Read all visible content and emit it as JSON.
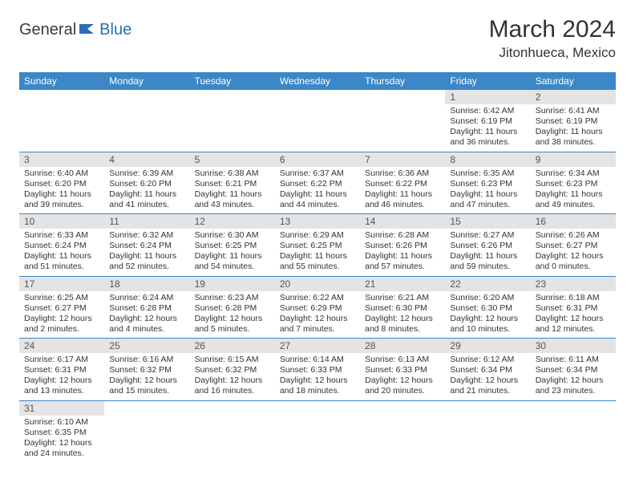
{
  "logo": {
    "text1": "General",
    "text2": "Blue"
  },
  "title": "March 2024",
  "location": "Jitonhueca, Mexico",
  "colors": {
    "header_bg": "#3b87c8",
    "header_fg": "#ffffff",
    "daynum_bg": "#e4e4e4",
    "row_border": "#3b87c8",
    "logo_blue": "#2a6fb5"
  },
  "weekdays": [
    "Sunday",
    "Monday",
    "Tuesday",
    "Wednesday",
    "Thursday",
    "Friday",
    "Saturday"
  ],
  "weeks": [
    [
      null,
      null,
      null,
      null,
      null,
      {
        "day": "1",
        "sunrise": "Sunrise: 6:42 AM",
        "sunset": "Sunset: 6:19 PM",
        "daylight": "Daylight: 11 hours and 36 minutes."
      },
      {
        "day": "2",
        "sunrise": "Sunrise: 6:41 AM",
        "sunset": "Sunset: 6:19 PM",
        "daylight": "Daylight: 11 hours and 38 minutes."
      }
    ],
    [
      {
        "day": "3",
        "sunrise": "Sunrise: 6:40 AM",
        "sunset": "Sunset: 6:20 PM",
        "daylight": "Daylight: 11 hours and 39 minutes."
      },
      {
        "day": "4",
        "sunrise": "Sunrise: 6:39 AM",
        "sunset": "Sunset: 6:20 PM",
        "daylight": "Daylight: 11 hours and 41 minutes."
      },
      {
        "day": "5",
        "sunrise": "Sunrise: 6:38 AM",
        "sunset": "Sunset: 6:21 PM",
        "daylight": "Daylight: 11 hours and 43 minutes."
      },
      {
        "day": "6",
        "sunrise": "Sunrise: 6:37 AM",
        "sunset": "Sunset: 6:22 PM",
        "daylight": "Daylight: 11 hours and 44 minutes."
      },
      {
        "day": "7",
        "sunrise": "Sunrise: 6:36 AM",
        "sunset": "Sunset: 6:22 PM",
        "daylight": "Daylight: 11 hours and 46 minutes."
      },
      {
        "day": "8",
        "sunrise": "Sunrise: 6:35 AM",
        "sunset": "Sunset: 6:23 PM",
        "daylight": "Daylight: 11 hours and 47 minutes."
      },
      {
        "day": "9",
        "sunrise": "Sunrise: 6:34 AM",
        "sunset": "Sunset: 6:23 PM",
        "daylight": "Daylight: 11 hours and 49 minutes."
      }
    ],
    [
      {
        "day": "10",
        "sunrise": "Sunrise: 6:33 AM",
        "sunset": "Sunset: 6:24 PM",
        "daylight": "Daylight: 11 hours and 51 minutes."
      },
      {
        "day": "11",
        "sunrise": "Sunrise: 6:32 AM",
        "sunset": "Sunset: 6:24 PM",
        "daylight": "Daylight: 11 hours and 52 minutes."
      },
      {
        "day": "12",
        "sunrise": "Sunrise: 6:30 AM",
        "sunset": "Sunset: 6:25 PM",
        "daylight": "Daylight: 11 hours and 54 minutes."
      },
      {
        "day": "13",
        "sunrise": "Sunrise: 6:29 AM",
        "sunset": "Sunset: 6:25 PM",
        "daylight": "Daylight: 11 hours and 55 minutes."
      },
      {
        "day": "14",
        "sunrise": "Sunrise: 6:28 AM",
        "sunset": "Sunset: 6:26 PM",
        "daylight": "Daylight: 11 hours and 57 minutes."
      },
      {
        "day": "15",
        "sunrise": "Sunrise: 6:27 AM",
        "sunset": "Sunset: 6:26 PM",
        "daylight": "Daylight: 11 hours and 59 minutes."
      },
      {
        "day": "16",
        "sunrise": "Sunrise: 6:26 AM",
        "sunset": "Sunset: 6:27 PM",
        "daylight": "Daylight: 12 hours and 0 minutes."
      }
    ],
    [
      {
        "day": "17",
        "sunrise": "Sunrise: 6:25 AM",
        "sunset": "Sunset: 6:27 PM",
        "daylight": "Daylight: 12 hours and 2 minutes."
      },
      {
        "day": "18",
        "sunrise": "Sunrise: 6:24 AM",
        "sunset": "Sunset: 6:28 PM",
        "daylight": "Daylight: 12 hours and 4 minutes."
      },
      {
        "day": "19",
        "sunrise": "Sunrise: 6:23 AM",
        "sunset": "Sunset: 6:28 PM",
        "daylight": "Daylight: 12 hours and 5 minutes."
      },
      {
        "day": "20",
        "sunrise": "Sunrise: 6:22 AM",
        "sunset": "Sunset: 6:29 PM",
        "daylight": "Daylight: 12 hours and 7 minutes."
      },
      {
        "day": "21",
        "sunrise": "Sunrise: 6:21 AM",
        "sunset": "Sunset: 6:30 PM",
        "daylight": "Daylight: 12 hours and 8 minutes."
      },
      {
        "day": "22",
        "sunrise": "Sunrise: 6:20 AM",
        "sunset": "Sunset: 6:30 PM",
        "daylight": "Daylight: 12 hours and 10 minutes."
      },
      {
        "day": "23",
        "sunrise": "Sunrise: 6:18 AM",
        "sunset": "Sunset: 6:31 PM",
        "daylight": "Daylight: 12 hours and 12 minutes."
      }
    ],
    [
      {
        "day": "24",
        "sunrise": "Sunrise: 6:17 AM",
        "sunset": "Sunset: 6:31 PM",
        "daylight": "Daylight: 12 hours and 13 minutes."
      },
      {
        "day": "25",
        "sunrise": "Sunrise: 6:16 AM",
        "sunset": "Sunset: 6:32 PM",
        "daylight": "Daylight: 12 hours and 15 minutes."
      },
      {
        "day": "26",
        "sunrise": "Sunrise: 6:15 AM",
        "sunset": "Sunset: 6:32 PM",
        "daylight": "Daylight: 12 hours and 16 minutes."
      },
      {
        "day": "27",
        "sunrise": "Sunrise: 6:14 AM",
        "sunset": "Sunset: 6:33 PM",
        "daylight": "Daylight: 12 hours and 18 minutes."
      },
      {
        "day": "28",
        "sunrise": "Sunrise: 6:13 AM",
        "sunset": "Sunset: 6:33 PM",
        "daylight": "Daylight: 12 hours and 20 minutes."
      },
      {
        "day": "29",
        "sunrise": "Sunrise: 6:12 AM",
        "sunset": "Sunset: 6:34 PM",
        "daylight": "Daylight: 12 hours and 21 minutes."
      },
      {
        "day": "30",
        "sunrise": "Sunrise: 6:11 AM",
        "sunset": "Sunset: 6:34 PM",
        "daylight": "Daylight: 12 hours and 23 minutes."
      }
    ],
    [
      {
        "day": "31",
        "sunrise": "Sunrise: 6:10 AM",
        "sunset": "Sunset: 6:35 PM",
        "daylight": "Daylight: 12 hours and 24 minutes."
      },
      null,
      null,
      null,
      null,
      null,
      null
    ]
  ]
}
